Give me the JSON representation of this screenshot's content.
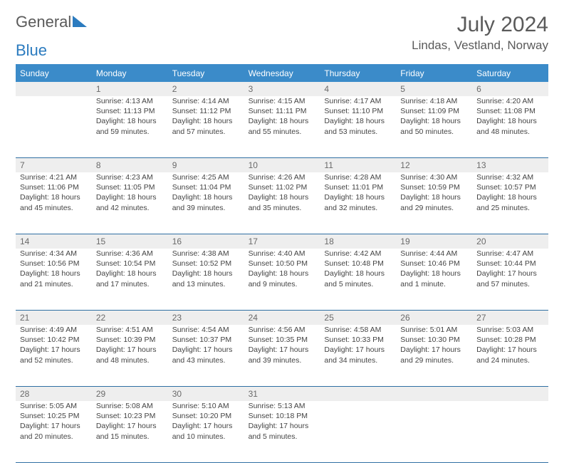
{
  "logo": {
    "text1": "General",
    "text2": "Blue"
  },
  "title": "July 2024",
  "location": "Lindas, Vestland, Norway",
  "header_bg": "#3b8bc9",
  "dow": [
    "Sunday",
    "Monday",
    "Tuesday",
    "Wednesday",
    "Thursday",
    "Friday",
    "Saturday"
  ],
  "weeks": [
    [
      null,
      {
        "n": "1",
        "r": "Sunrise: 4:13 AM",
        "s": "Sunset: 11:13 PM",
        "d": "Daylight: 18 hours and 59 minutes."
      },
      {
        "n": "2",
        "r": "Sunrise: 4:14 AM",
        "s": "Sunset: 11:12 PM",
        "d": "Daylight: 18 hours and 57 minutes."
      },
      {
        "n": "3",
        "r": "Sunrise: 4:15 AM",
        "s": "Sunset: 11:11 PM",
        "d": "Daylight: 18 hours and 55 minutes."
      },
      {
        "n": "4",
        "r": "Sunrise: 4:17 AM",
        "s": "Sunset: 11:10 PM",
        "d": "Daylight: 18 hours and 53 minutes."
      },
      {
        "n": "5",
        "r": "Sunrise: 4:18 AM",
        "s": "Sunset: 11:09 PM",
        "d": "Daylight: 18 hours and 50 minutes."
      },
      {
        "n": "6",
        "r": "Sunrise: 4:20 AM",
        "s": "Sunset: 11:08 PM",
        "d": "Daylight: 18 hours and 48 minutes."
      }
    ],
    [
      {
        "n": "7",
        "r": "Sunrise: 4:21 AM",
        "s": "Sunset: 11:06 PM",
        "d": "Daylight: 18 hours and 45 minutes."
      },
      {
        "n": "8",
        "r": "Sunrise: 4:23 AM",
        "s": "Sunset: 11:05 PM",
        "d": "Daylight: 18 hours and 42 minutes."
      },
      {
        "n": "9",
        "r": "Sunrise: 4:25 AM",
        "s": "Sunset: 11:04 PM",
        "d": "Daylight: 18 hours and 39 minutes."
      },
      {
        "n": "10",
        "r": "Sunrise: 4:26 AM",
        "s": "Sunset: 11:02 PM",
        "d": "Daylight: 18 hours and 35 minutes."
      },
      {
        "n": "11",
        "r": "Sunrise: 4:28 AM",
        "s": "Sunset: 11:01 PM",
        "d": "Daylight: 18 hours and 32 minutes."
      },
      {
        "n": "12",
        "r": "Sunrise: 4:30 AM",
        "s": "Sunset: 10:59 PM",
        "d": "Daylight: 18 hours and 29 minutes."
      },
      {
        "n": "13",
        "r": "Sunrise: 4:32 AM",
        "s": "Sunset: 10:57 PM",
        "d": "Daylight: 18 hours and 25 minutes."
      }
    ],
    [
      {
        "n": "14",
        "r": "Sunrise: 4:34 AM",
        "s": "Sunset: 10:56 PM",
        "d": "Daylight: 18 hours and 21 minutes."
      },
      {
        "n": "15",
        "r": "Sunrise: 4:36 AM",
        "s": "Sunset: 10:54 PM",
        "d": "Daylight: 18 hours and 17 minutes."
      },
      {
        "n": "16",
        "r": "Sunrise: 4:38 AM",
        "s": "Sunset: 10:52 PM",
        "d": "Daylight: 18 hours and 13 minutes."
      },
      {
        "n": "17",
        "r": "Sunrise: 4:40 AM",
        "s": "Sunset: 10:50 PM",
        "d": "Daylight: 18 hours and 9 minutes."
      },
      {
        "n": "18",
        "r": "Sunrise: 4:42 AM",
        "s": "Sunset: 10:48 PM",
        "d": "Daylight: 18 hours and 5 minutes."
      },
      {
        "n": "19",
        "r": "Sunrise: 4:44 AM",
        "s": "Sunset: 10:46 PM",
        "d": "Daylight: 18 hours and 1 minute."
      },
      {
        "n": "20",
        "r": "Sunrise: 4:47 AM",
        "s": "Sunset: 10:44 PM",
        "d": "Daylight: 17 hours and 57 minutes."
      }
    ],
    [
      {
        "n": "21",
        "r": "Sunrise: 4:49 AM",
        "s": "Sunset: 10:42 PM",
        "d": "Daylight: 17 hours and 52 minutes."
      },
      {
        "n": "22",
        "r": "Sunrise: 4:51 AM",
        "s": "Sunset: 10:39 PM",
        "d": "Daylight: 17 hours and 48 minutes."
      },
      {
        "n": "23",
        "r": "Sunrise: 4:54 AM",
        "s": "Sunset: 10:37 PM",
        "d": "Daylight: 17 hours and 43 minutes."
      },
      {
        "n": "24",
        "r": "Sunrise: 4:56 AM",
        "s": "Sunset: 10:35 PM",
        "d": "Daylight: 17 hours and 39 minutes."
      },
      {
        "n": "25",
        "r": "Sunrise: 4:58 AM",
        "s": "Sunset: 10:33 PM",
        "d": "Daylight: 17 hours and 34 minutes."
      },
      {
        "n": "26",
        "r": "Sunrise: 5:01 AM",
        "s": "Sunset: 10:30 PM",
        "d": "Daylight: 17 hours and 29 minutes."
      },
      {
        "n": "27",
        "r": "Sunrise: 5:03 AM",
        "s": "Sunset: 10:28 PM",
        "d": "Daylight: 17 hours and 24 minutes."
      }
    ],
    [
      {
        "n": "28",
        "r": "Sunrise: 5:05 AM",
        "s": "Sunset: 10:25 PM",
        "d": "Daylight: 17 hours and 20 minutes."
      },
      {
        "n": "29",
        "r": "Sunrise: 5:08 AM",
        "s": "Sunset: 10:23 PM",
        "d": "Daylight: 17 hours and 15 minutes."
      },
      {
        "n": "30",
        "r": "Sunrise: 5:10 AM",
        "s": "Sunset: 10:20 PM",
        "d": "Daylight: 17 hours and 10 minutes."
      },
      {
        "n": "31",
        "r": "Sunrise: 5:13 AM",
        "s": "Sunset: 10:18 PM",
        "d": "Daylight: 17 hours and 5 minutes."
      },
      null,
      null,
      null
    ]
  ]
}
